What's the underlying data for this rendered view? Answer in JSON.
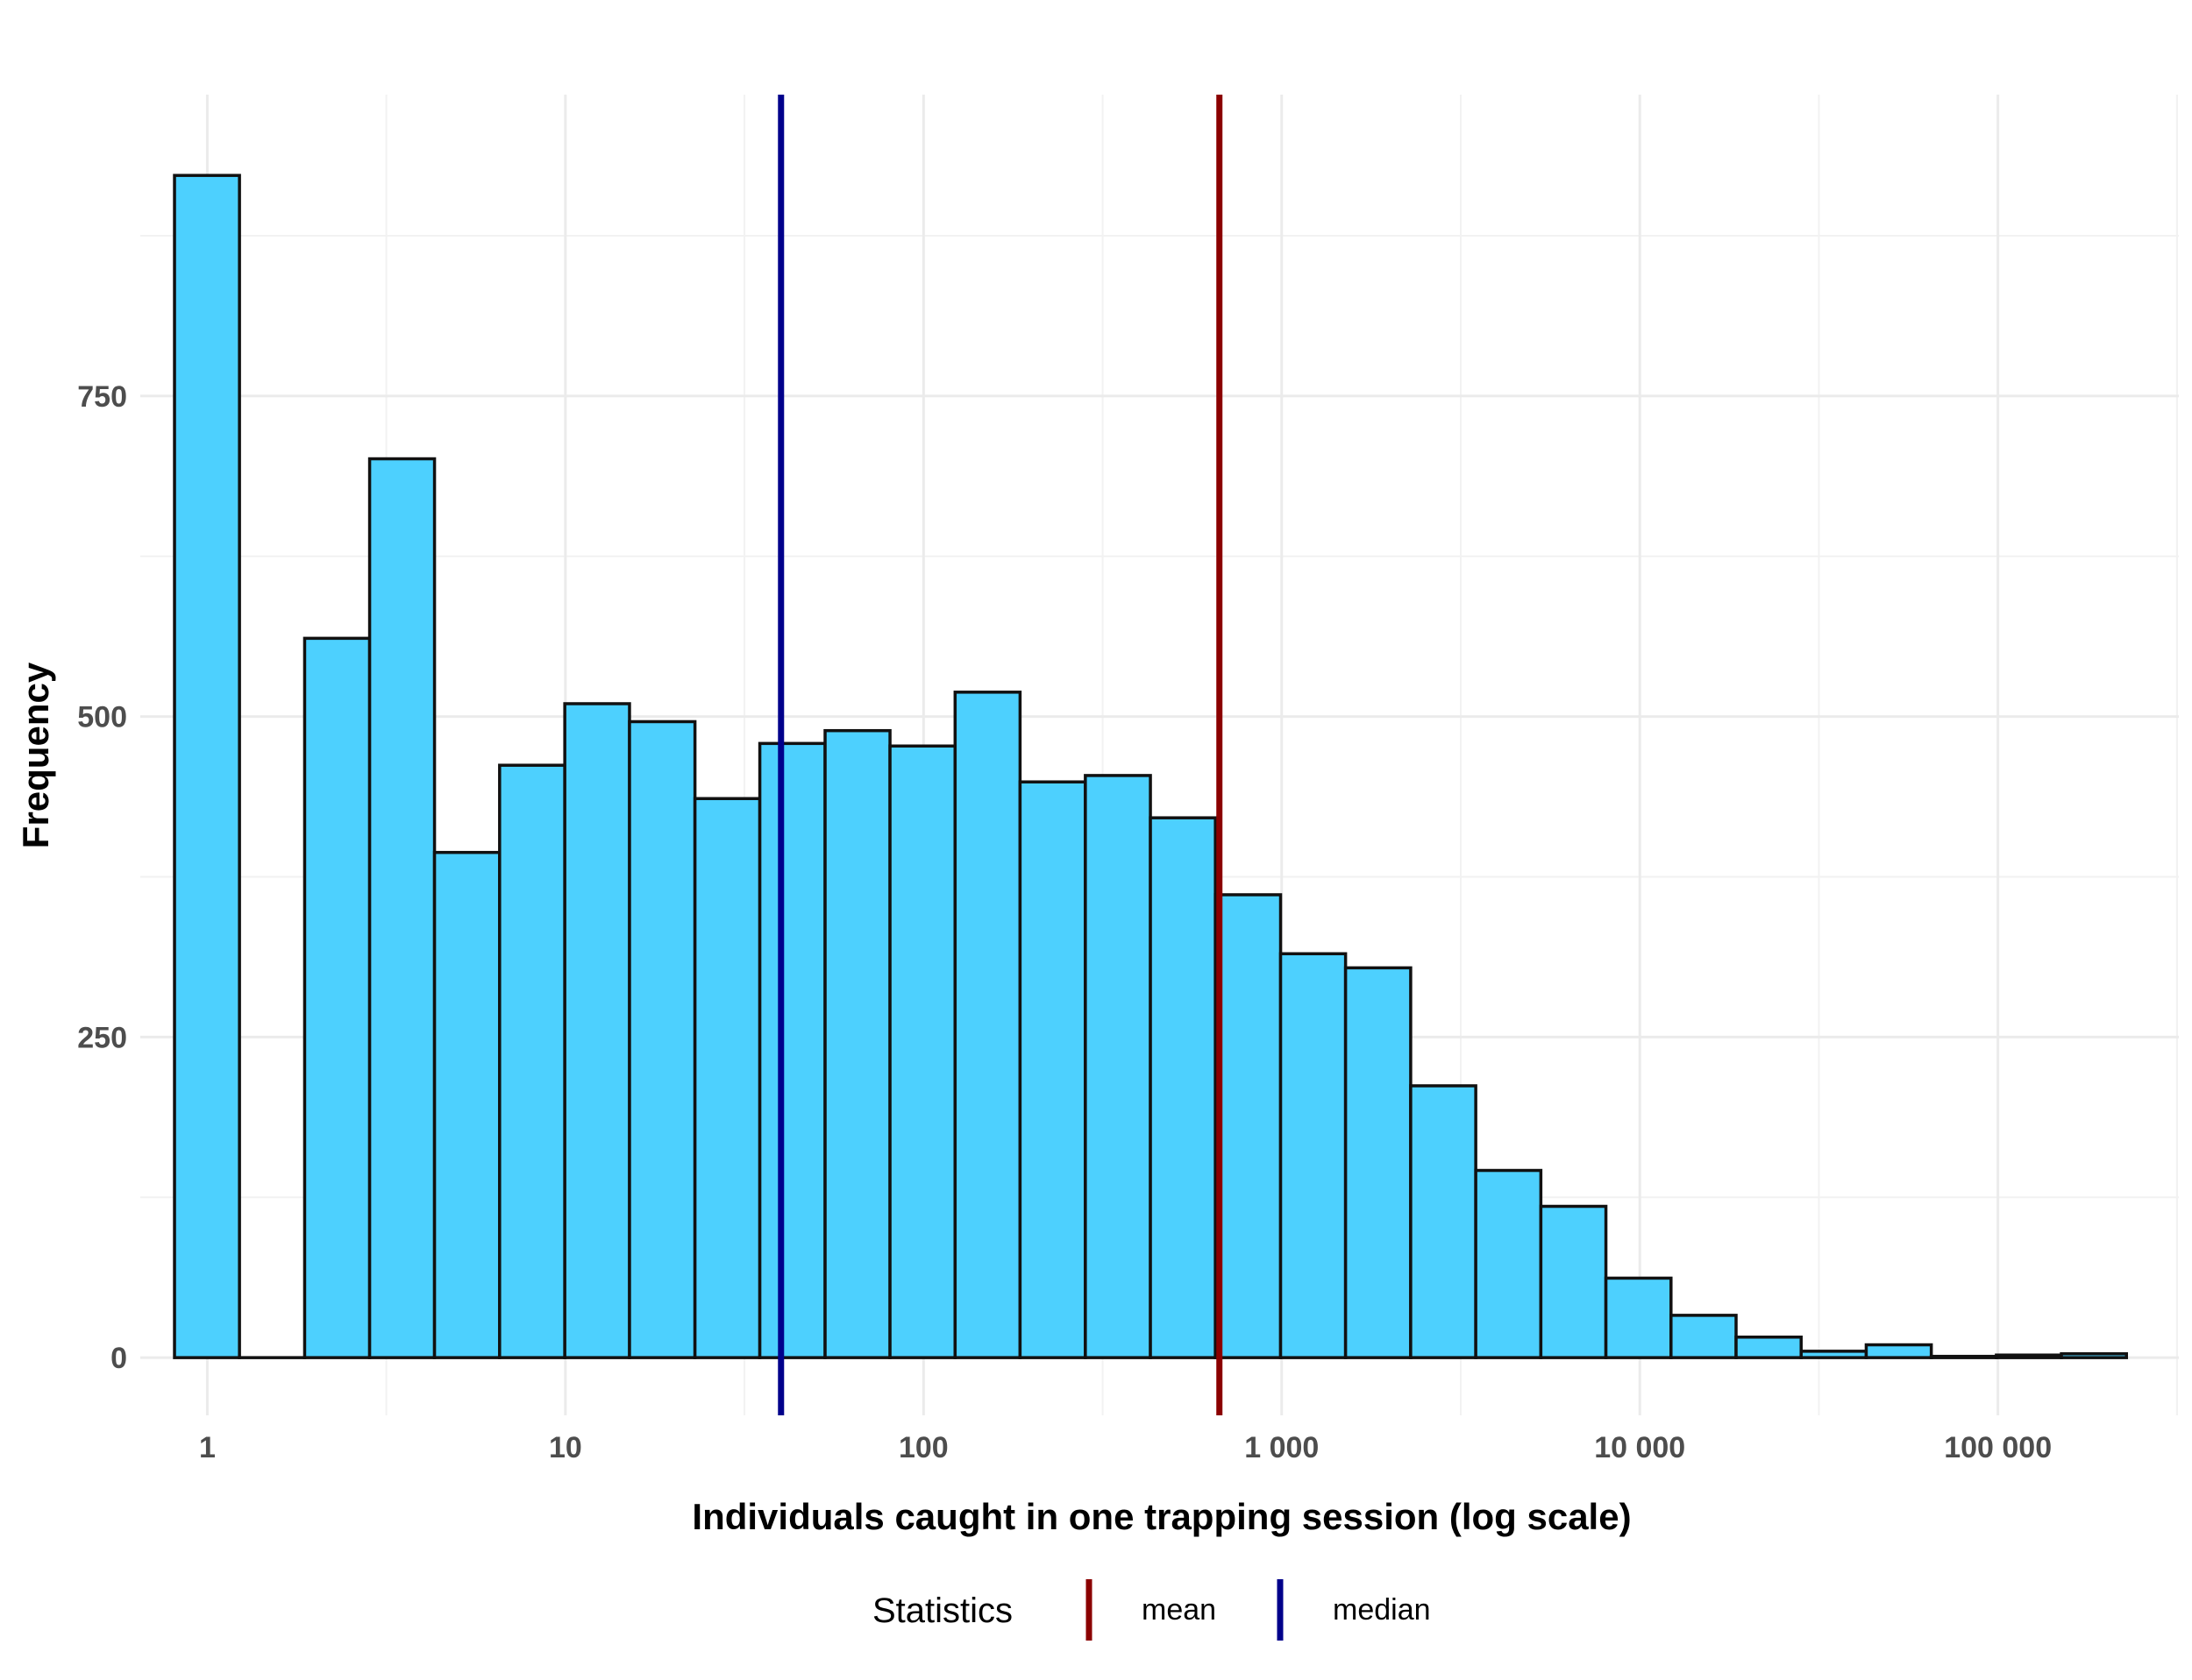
{
  "chart_data": {
    "type": "bar",
    "title": "",
    "xlabel": "Individuals caught in one trapping session (log scale)",
    "ylabel": "Frequency",
    "x_scale": "log10",
    "x_range": [
      0.65,
      320000
    ],
    "ylim": [
      -45,
      985
    ],
    "x_ticks": [
      {
        "value": 1,
        "label": "1"
      },
      {
        "value": 10,
        "label": "10"
      },
      {
        "value": 100,
        "label": "100"
      },
      {
        "value": 1000,
        "label": "1 000"
      },
      {
        "value": 10000,
        "label": "10 000"
      },
      {
        "value": 100000,
        "label": "100 000"
      }
    ],
    "y_ticks": [
      {
        "value": 0,
        "label": "0"
      },
      {
        "value": 250,
        "label": "250"
      },
      {
        "value": 500,
        "label": "500"
      },
      {
        "value": 750,
        "label": "750"
      }
    ],
    "grid": true,
    "bins": [
      {
        "x_start": 0.81,
        "x_end": 1.23,
        "count": 922
      },
      {
        "x_start": 1.23,
        "x_end": 1.87,
        "count": 0
      },
      {
        "x_start": 1.87,
        "x_end": 2.84,
        "count": 561
      },
      {
        "x_start": 2.84,
        "x_end": 4.31,
        "count": 701
      },
      {
        "x_start": 4.31,
        "x_end": 6.55,
        "count": 394
      },
      {
        "x_start": 6.55,
        "x_end": 9.96,
        "count": 462
      },
      {
        "x_start": 9.96,
        "x_end": 15.1,
        "count": 510
      },
      {
        "x_start": 15.1,
        "x_end": 23.0,
        "count": 496
      },
      {
        "x_start": 23.0,
        "x_end": 34.9,
        "count": 436
      },
      {
        "x_start": 34.9,
        "x_end": 53.1,
        "count": 479
      },
      {
        "x_start": 53.1,
        "x_end": 80.6,
        "count": 489
      },
      {
        "x_start": 80.6,
        "x_end": 122.5,
        "count": 477
      },
      {
        "x_start": 122.5,
        "x_end": 186,
        "count": 519
      },
      {
        "x_start": 186,
        "x_end": 283,
        "count": 449
      },
      {
        "x_start": 283,
        "x_end": 430,
        "count": 454
      },
      {
        "x_start": 430,
        "x_end": 653,
        "count": 421
      },
      {
        "x_start": 653,
        "x_end": 993,
        "count": 361
      },
      {
        "x_start": 993,
        "x_end": 1508,
        "count": 315
      },
      {
        "x_start": 1508,
        "x_end": 2292,
        "count": 304
      },
      {
        "x_start": 2292,
        "x_end": 3483,
        "count": 212
      },
      {
        "x_start": 3483,
        "x_end": 5293,
        "count": 146
      },
      {
        "x_start": 5293,
        "x_end": 8042,
        "count": 118
      },
      {
        "x_start": 8042,
        "x_end": 12221,
        "count": 62
      },
      {
        "x_start": 12221,
        "x_end": 18570,
        "count": 33
      },
      {
        "x_start": 18570,
        "x_end": 28217,
        "count": 16
      },
      {
        "x_start": 28217,
        "x_end": 42877,
        "count": 5
      },
      {
        "x_start": 42877,
        "x_end": 65152,
        "count": 10
      },
      {
        "x_start": 65152,
        "x_end": 99000,
        "count": 1
      },
      {
        "x_start": 99000,
        "x_end": 150400,
        "count": 2
      },
      {
        "x_start": 150400,
        "x_end": 228500,
        "count": 3
      }
    ],
    "bar_color": "#4dd0fe",
    "bar_outline": "#111111",
    "reference_lines": [
      {
        "name": "mean",
        "x": 670,
        "color": "#8b0000"
      },
      {
        "name": "median",
        "x": 40,
        "color": "#00008b"
      }
    ],
    "legend": {
      "title": "Statistics",
      "position": "bottom",
      "items": [
        {
          "label": "mean",
          "color": "#8b0000"
        },
        {
          "label": "median",
          "color": "#00008b"
        }
      ]
    }
  }
}
